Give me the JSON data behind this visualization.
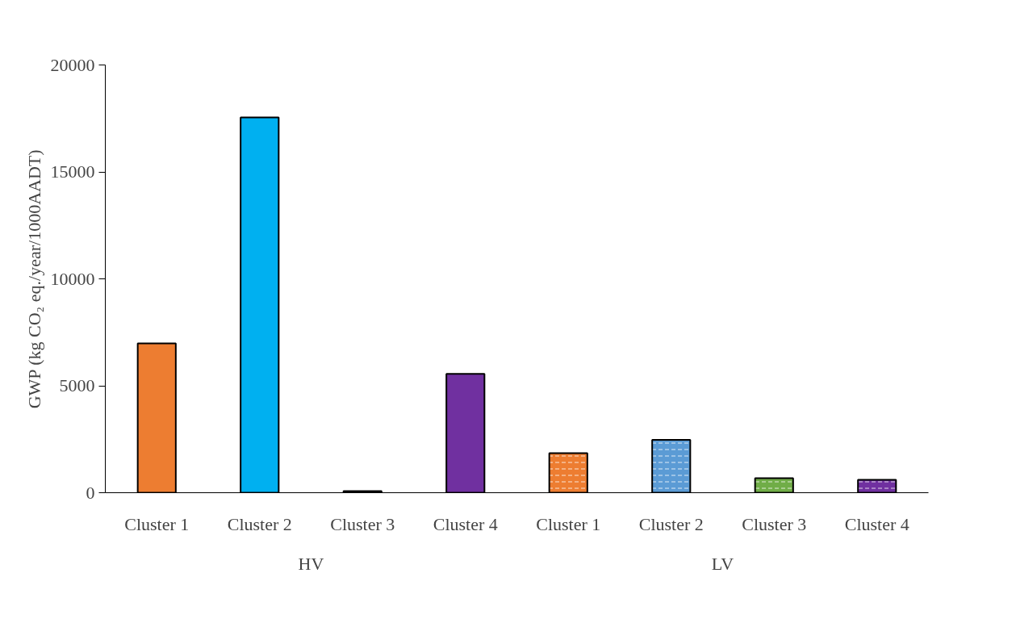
{
  "chart_data": {
    "type": "bar",
    "ylabel": "GWP (kg CO₂ eq./year/1000AADT)",
    "categories": [
      "Cluster 1",
      "Cluster 2",
      "Cluster 3",
      "Cluster 4",
      "Cluster 1",
      "Cluster 2",
      "Cluster 3",
      "Cluster 4"
    ],
    "values": [
      6980,
      17550,
      80,
      5560,
      1850,
      2470,
      680,
      600
    ],
    "colors": [
      "#ed7d31",
      "#00b0f0",
      "#70ad47",
      "#7030a0",
      "#ed7d31",
      "#5b9bd5",
      "#70ad47",
      "#7030a0"
    ],
    "annotations": [
      "HV",
      "LV"
    ],
    "ylim": [
      0,
      20000
    ],
    "yticks": [
      0,
      5000,
      10000,
      15000,
      20000
    ],
    "grid": false
  }
}
